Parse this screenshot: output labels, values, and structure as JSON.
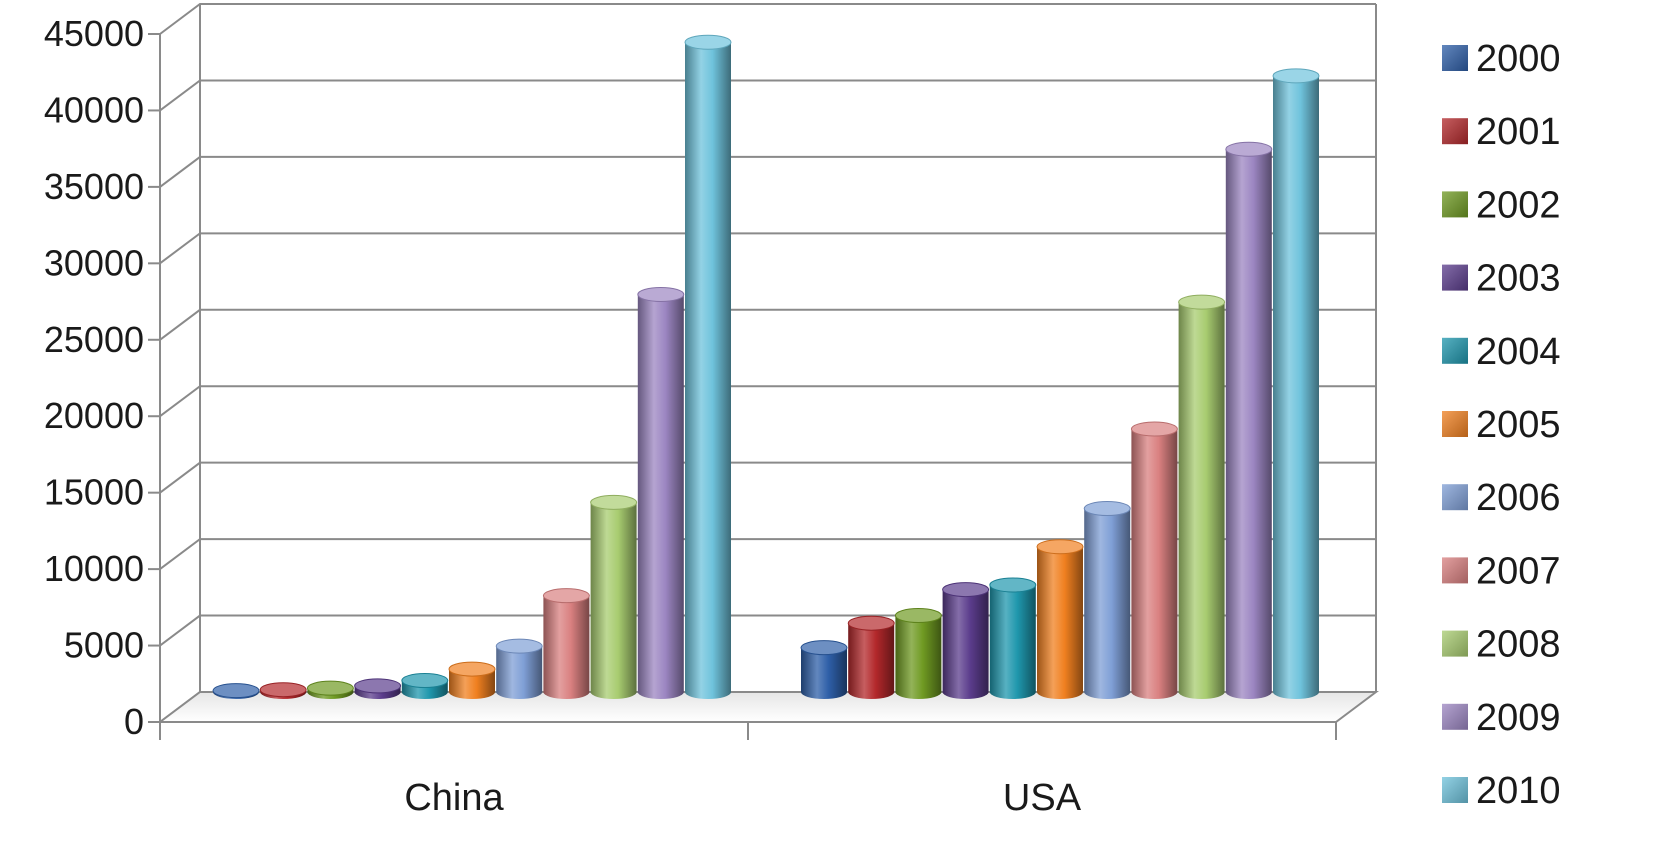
{
  "chart_data": {
    "type": "bar",
    "categories": [
      "China",
      "USA"
    ],
    "series": [
      {
        "name": "2000",
        "values": [
          90,
          2900
        ],
        "color": "#2e5fa8"
      },
      {
        "name": "2001",
        "values": [
          150,
          4500
        ],
        "color": "#b3282b"
      },
      {
        "name": "2002",
        "values": [
          250,
          5000
        ],
        "color": "#6f9a22"
      },
      {
        "name": "2003",
        "values": [
          400,
          6700
        ],
        "color": "#5b3c8c"
      },
      {
        "name": "2004",
        "values": [
          750,
          7000
        ],
        "color": "#1f97ad"
      },
      {
        "name": "2005",
        "values": [
          1500,
          9500
        ],
        "color": "#f08020"
      },
      {
        "name": "2006",
        "values": [
          3000,
          12000
        ],
        "color": "#7f9fd6"
      },
      {
        "name": "2007",
        "values": [
          6300,
          17200
        ],
        "color": "#d98080"
      },
      {
        "name": "2008",
        "values": [
          12400,
          25500
        ],
        "color": "#a8cc70"
      },
      {
        "name": "2009",
        "values": [
          26000,
          35500
        ],
        "color": "#9c86c2"
      },
      {
        "name": "2010",
        "values": [
          42500,
          40300
        ],
        "color": "#6fc3dc"
      }
    ],
    "yticks": [
      "0",
      "5000",
      "10000",
      "15000",
      "20000",
      "25000",
      "30000",
      "35000",
      "40000",
      "45000"
    ],
    "ylim": [
      0,
      45000
    ],
    "grid": true,
    "legend_position": "right",
    "style": "3d-cylinder"
  }
}
